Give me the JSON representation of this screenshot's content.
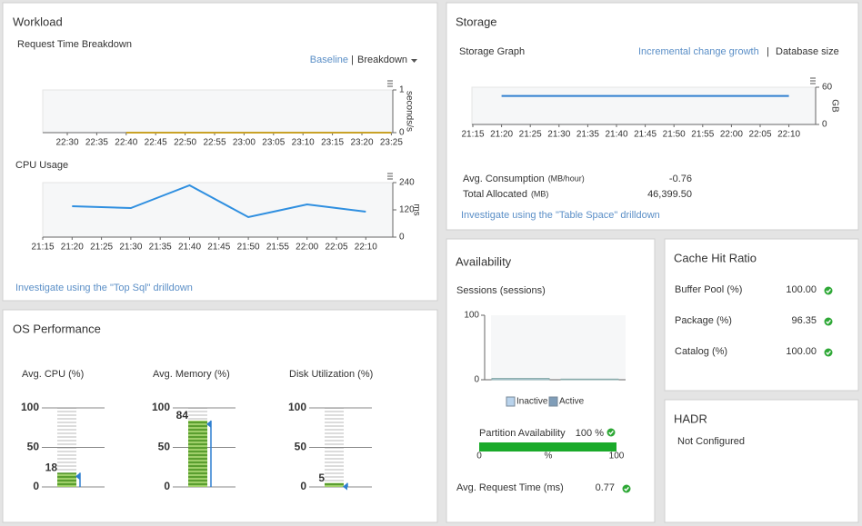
{
  "workload": {
    "title": "Workload",
    "request_time": {
      "type": "line",
      "title": "Request Time Breakdown",
      "links": [
        "Baseline",
        "Breakdown"
      ],
      "categories": [
        "22:30",
        "22:35",
        "22:40",
        "22:45",
        "22:50",
        "22:55",
        "23:00",
        "23:05",
        "23:10",
        "23:15",
        "23:20",
        "23:25"
      ],
      "y_label": "seconds/s",
      "ylim": [
        0,
        1
      ],
      "yticks": [
        0,
        1
      ],
      "series": [
        {
          "color": "#c9a227",
          "values": [
            null,
            null,
            0,
            0,
            0,
            0,
            0,
            0,
            0,
            0,
            0,
            0
          ]
        }
      ]
    },
    "cpu_usage": {
      "type": "line",
      "title": "CPU Usage",
      "categories": [
        "21:15",
        "21:20",
        "21:25",
        "21:30",
        "21:35",
        "21:40",
        "21:45",
        "21:50",
        "21:55",
        "22:00",
        "22:05",
        "22:10"
      ],
      "y_label": "ms",
      "ylim": [
        0,
        240
      ],
      "yticks": [
        0,
        120,
        240
      ],
      "series": [
        {
          "color": "#2f8fe0",
          "values": [
            null,
            136,
            132,
            128,
            178,
            228,
            158,
            88,
            116,
            144,
            128,
            112
          ]
        }
      ]
    },
    "link": "Investigate using the \"Top Sql\" drilldown"
  },
  "os_performance": {
    "title": "OS Performance",
    "ticks": [
      0,
      50,
      100
    ],
    "ylim": [
      0,
      100
    ],
    "gauges": [
      {
        "label": "Avg. CPU (%)",
        "value": 18
      },
      {
        "label": "Avg. Memory (%)",
        "value": 84
      },
      {
        "label": "Disk Utilization (%)",
        "value": 5
      }
    ]
  },
  "storage": {
    "title": "Storage",
    "graph": {
      "type": "line",
      "title": "Storage Graph",
      "links": [
        "Incremental change growth",
        "Database size"
      ],
      "categories": [
        "21:15",
        "21:20",
        "21:25",
        "21:30",
        "21:35",
        "21:40",
        "21:45",
        "21:50",
        "21:55",
        "22:00",
        "22:05",
        "22:10"
      ],
      "y_label": "GB",
      "ylim": [
        0,
        60
      ],
      "yticks": [
        0,
        60
      ],
      "series": [
        {
          "color": "#2f7fd0",
          "values": [
            null,
            46,
            46,
            46,
            46,
            46,
            46,
            46,
            46,
            46,
            46,
            46
          ]
        }
      ]
    },
    "stats": [
      {
        "label": "Avg. Consumption",
        "unit": "(MB/hour)",
        "value": "-0.76"
      },
      {
        "label": "Total Allocated",
        "unit": "(MB)",
        "value": "46,399.50"
      }
    ],
    "link": "Investigate using the \"Table Space\" drilldown"
  },
  "availability": {
    "title": "Availability",
    "sessions": {
      "type": "bar",
      "title": "Sessions (sessions)",
      "ylim": [
        0,
        100
      ],
      "yticks": [
        0,
        100
      ],
      "series": [
        {
          "name": "Inactive",
          "color": "#b9d3ec",
          "values": [
            2
          ]
        },
        {
          "name": "Active",
          "color": "#7f9db8",
          "values": [
            1
          ]
        }
      ]
    },
    "partition": {
      "label": "Partition Availability",
      "value": 100,
      "value_label": "100 %",
      "color": "#1aaa2a",
      "xlim": [
        0,
        100
      ],
      "xticks": [
        0,
        100
      ],
      "unit": "%"
    },
    "request_time": {
      "label": "Avg. Request Time (ms)",
      "value": "0.77"
    }
  },
  "cache_hit_ratio": {
    "title": "Cache Hit Ratio",
    "rows": [
      {
        "label": "Buffer Pool (%)",
        "value": "100.00"
      },
      {
        "label": "Package (%)",
        "value": "96.35"
      },
      {
        "label": "Catalog (%)",
        "value": "100.00"
      }
    ]
  },
  "hadr": {
    "title": "HADR",
    "status": "Not Configured"
  }
}
